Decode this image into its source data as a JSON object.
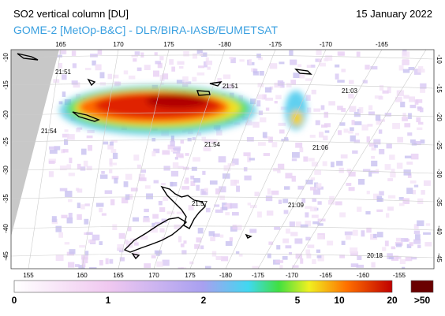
{
  "header": {
    "title": "SO2 vertical column [DU]",
    "date": "15 January 2022",
    "subtitle": "GOME-2 [MetOp-B&C] - DLR/BIRA-IASB/EUMETSAT"
  },
  "map": {
    "top_lon_labels": [
      "165",
      "170",
      "175",
      "-180",
      "-175",
      "-170",
      "-165"
    ],
    "bottom_lon_labels": [
      "155",
      "160",
      "165",
      "170",
      "175",
      "-180",
      "-175",
      "-170",
      "-165",
      "-160",
      "-155"
    ],
    "left_lat_labels": [
      "-10",
      "-15",
      "-20",
      "-25",
      "-30",
      "-35",
      "-40",
      "-45"
    ],
    "right_lat_labels": [
      "-10",
      "-15",
      "-20",
      "-25",
      "-30",
      "-35",
      "-40",
      "-45"
    ],
    "overpass_times": [
      "21:51",
      "21:51",
      "21:03",
      "21:54",
      "21:54",
      "21:06",
      "21:57",
      "21:09",
      "20:18"
    ]
  },
  "colorbar": {
    "labels": [
      "0",
      "1",
      "2",
      "5",
      "10",
      "20",
      ">50"
    ]
  }
}
